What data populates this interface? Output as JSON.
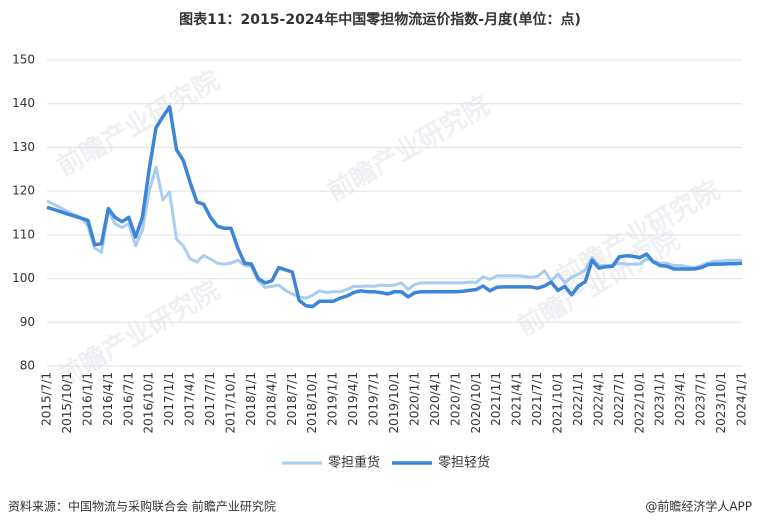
{
  "chart_data": {
    "type": "line",
    "title": "图表11：2015-2024年中国零担物流运价指数-月度(单位：点)",
    "source": "资料来源：中国物流与采购联合会 前瞻产业研究院",
    "credit": "@前瞻经济学人APP",
    "watermark": "前瞻产业研究院",
    "categories": [
      "2015/7/1",
      null,
      null,
      "2015/10/1",
      null,
      null,
      "2016/1/1",
      null,
      null,
      "2016/4/1",
      null,
      null,
      "2016/7/1",
      null,
      null,
      "2016/10/1",
      null,
      null,
      "2017/1/1",
      null,
      null,
      "2017/4/1",
      null,
      null,
      "2017/7/1",
      null,
      null,
      "2017/10/1",
      null,
      null,
      "2018/1/1",
      null,
      null,
      "2018/4/1",
      null,
      null,
      "2018/7/1",
      null,
      null,
      "2018/10/1",
      null,
      null,
      "2019/1/1",
      null,
      null,
      "2019/4/1",
      null,
      null,
      "2019/7/1",
      null,
      null,
      "2019/10/1",
      null,
      null,
      "2020/1/1",
      null,
      null,
      "2020/4/1",
      null,
      null,
      "2020/7/1",
      null,
      null,
      "2020/10/1",
      null,
      null,
      "2021/1/1",
      null,
      null,
      "2021/4/1",
      null,
      null,
      "2021/7/1",
      null,
      null,
      "2021/10/1",
      null,
      null,
      "2022/1/1",
      null,
      null,
      "2022/4/1",
      null,
      null,
      "2022/7/1",
      null,
      null,
      "2022/10/1",
      null,
      null,
      "2023/1/1",
      null,
      null,
      "2023/4/1",
      null,
      null,
      "2023/7/1",
      null,
      null,
      "2023/10/1",
      null,
      null,
      "2024/1/1"
    ],
    "series": [
      {
        "name": "零担重货",
        "color": "#a9cdf0",
        "width": 3,
        "values": [
          117.8,
          117,
          116.2,
          115.4,
          114.6,
          114,
          112,
          107,
          106,
          115.5,
          112.5,
          111.7,
          112.5,
          107.5,
          111,
          120,
          125.5,
          118,
          119.8,
          109,
          107.5,
          104.5,
          103.8,
          105.3,
          104.5,
          103.5,
          103.3,
          103.5,
          104.2,
          103,
          102.8,
          99.5,
          98,
          98.2,
          98.5,
          97.3,
          96.5,
          95.8,
          95.5,
          96.2,
          97.2,
          96.8,
          97,
          97,
          97.5,
          98.2,
          98.2,
          98.3,
          98.2,
          98.5,
          98.4,
          98.5,
          99,
          97.5,
          98.7,
          99,
          99,
          99,
          99,
          99,
          99,
          99,
          99.2,
          99.1,
          100.4,
          99.8,
          100.6,
          100.6,
          100.6,
          100.6,
          100.5,
          100.3,
          100.5,
          101.8,
          99.5,
          101,
          99,
          100.3,
          101,
          102,
          104.8,
          103,
          103,
          103,
          103.5,
          103.3,
          103.3,
          103.3,
          104.5,
          104,
          103.5,
          103.5,
          103,
          103,
          102.7,
          102.5,
          103,
          103.6,
          104,
          104,
          104.2,
          104.2,
          104.2
        ]
      },
      {
        "name": "零担轻货",
        "color": "#3d85d8",
        "width": 3.5,
        "values": [
          116.3,
          115.8,
          115.3,
          114.8,
          114.3,
          113.8,
          113.3,
          107.7,
          108,
          116,
          114,
          113,
          114,
          109.5,
          114,
          125,
          134.5,
          137,
          139.3,
          129.5,
          127,
          122,
          117.5,
          117,
          114,
          112,
          111.5,
          111.5,
          107,
          103.5,
          103.3,
          100,
          99,
          99.5,
          102.5,
          102,
          101.5,
          95,
          93.8,
          93.6,
          94.8,
          94.8,
          94.8,
          95.5,
          96,
          96.8,
          97.2,
          97,
          97,
          96.8,
          96.5,
          97,
          97,
          95.8,
          96.8,
          97,
          97,
          97,
          97,
          97,
          97,
          97.1,
          97.3,
          97.5,
          98.3,
          97.2,
          98,
          98.1,
          98.1,
          98.1,
          98.1,
          98.1,
          97.8,
          98.3,
          99.2,
          97.3,
          98.2,
          96.3,
          98.3,
          99.3,
          104.2,
          102.4,
          102.7,
          102.8,
          105,
          105.2,
          105.1,
          104.8,
          105.6,
          103.8,
          103,
          102.8,
          102.2,
          102.2,
          102.2,
          102.2,
          102.5,
          103.2,
          103.3,
          103.3,
          103.4,
          103.4,
          103.5
        ]
      }
    ],
    "ylim": [
      80,
      150
    ],
    "yticks": [
      80,
      90,
      100,
      110,
      120,
      130,
      140,
      150
    ],
    "grid": true,
    "legend": "bottom"
  }
}
